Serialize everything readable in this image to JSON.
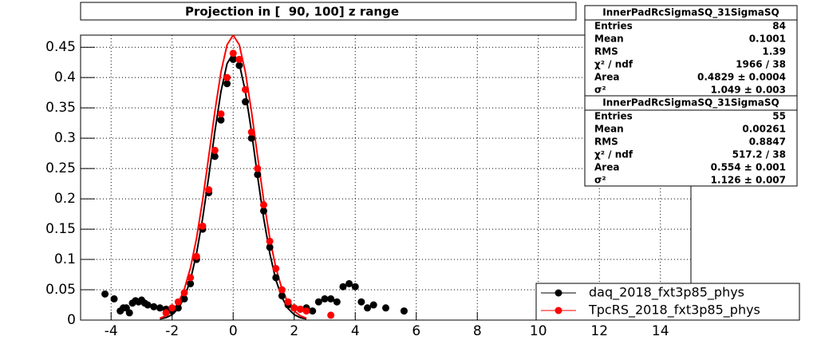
{
  "chart_data": {
    "type": "scatter",
    "title": "Projection in [  90, 100] z range",
    "xlim": [
      -5,
      15
    ],
    "ylim": [
      0,
      0.47
    ],
    "xticks": [
      -4,
      -2,
      0,
      2,
      4,
      6,
      8,
      10,
      12,
      14
    ],
    "yticks": [
      0,
      0.05,
      0.1,
      0.15,
      0.2,
      0.25,
      0.3,
      0.35,
      0.4,
      0.45
    ],
    "grid": true,
    "legend": "bottom-right",
    "series": [
      {
        "name": "daq_2018_fxt3p85_phys",
        "color": "#000000",
        "x": [
          -4.2,
          -3.9,
          -3.7,
          -3.6,
          -3.5,
          -3.4,
          -3.3,
          -3.2,
          -3.1,
          -3.0,
          -2.9,
          -2.8,
          -2.6,
          -2.4,
          -2.2,
          -2.0,
          -1.8,
          -1.6,
          -1.4,
          -1.2,
          -1.0,
          -0.8,
          -0.6,
          -0.4,
          -0.2,
          0,
          0.2,
          0.4,
          0.6,
          0.8,
          1.0,
          1.2,
          1.4,
          1.6,
          1.8,
          2.0,
          2.2,
          2.4,
          2.6,
          2.8,
          3.0,
          3.2,
          3.4,
          3.6,
          3.8,
          4.0,
          4.2,
          4.4,
          4.6,
          5.0,
          5.6
        ],
        "values": [
          0.043,
          0.035,
          0.015,
          0.02,
          0.02,
          0.012,
          0.028,
          0.032,
          0.03,
          0.033,
          0.028,
          0.025,
          0.022,
          0.02,
          0.018,
          0.015,
          0.02,
          0.035,
          0.06,
          0.1,
          0.15,
          0.21,
          0.27,
          0.33,
          0.39,
          0.43,
          0.42,
          0.36,
          0.3,
          0.24,
          0.18,
          0.12,
          0.07,
          0.04,
          0.025,
          0.02,
          0.018,
          0.02,
          0.015,
          0.03,
          0.035,
          0.035,
          0.03,
          0.055,
          0.06,
          0.055,
          0.03,
          0.02,
          0.025,
          0.02,
          0.015
        ]
      },
      {
        "name": "TpcRS_2018_fxt3p85_phys",
        "color": "#ff0000",
        "x": [
          -2.2,
          -2.0,
          -1.8,
          -1.6,
          -1.4,
          -1.2,
          -1.0,
          -0.8,
          -0.6,
          -0.4,
          -0.2,
          0,
          0.2,
          0.4,
          0.6,
          0.8,
          1.0,
          1.2,
          1.4,
          1.6,
          1.8,
          2.0,
          2.2,
          2.4,
          3.2
        ],
        "values": [
          0.012,
          0.02,
          0.03,
          0.045,
          0.07,
          0.105,
          0.155,
          0.215,
          0.28,
          0.34,
          0.4,
          0.44,
          0.43,
          0.38,
          0.31,
          0.25,
          0.19,
          0.13,
          0.085,
          0.05,
          0.03,
          0.02,
          0.018,
          0.015,
          0.008
        ]
      }
    ],
    "fit_curves": [
      {
        "color": "#000000",
        "x": [
          -2.4,
          -2.2,
          -2.0,
          -1.8,
          -1.6,
          -1.4,
          -1.2,
          -1.0,
          -0.8,
          -0.6,
          -0.4,
          -0.2,
          0,
          0.2,
          0.4,
          0.6,
          0.8,
          1.0,
          1.2,
          1.4,
          1.6,
          1.8,
          2.0,
          2.2,
          2.4
        ],
        "values": [
          0.002,
          0.004,
          0.009,
          0.019,
          0.037,
          0.066,
          0.11,
          0.168,
          0.237,
          0.311,
          0.377,
          0.423,
          0.44,
          0.423,
          0.377,
          0.311,
          0.237,
          0.168,
          0.11,
          0.066,
          0.037,
          0.019,
          0.009,
          0.004,
          0.002
        ]
      },
      {
        "color": "#ff0000",
        "x": [
          -2.4,
          -2.2,
          -2.0,
          -1.8,
          -1.6,
          -1.4,
          -1.2,
          -1.0,
          -0.8,
          -0.6,
          -0.4,
          -0.2,
          0,
          0.2,
          0.4,
          0.6,
          0.8,
          1.0,
          1.2,
          1.4,
          1.6,
          1.8,
          2.0,
          2.2,
          2.4
        ],
        "values": [
          0.003,
          0.007,
          0.015,
          0.028,
          0.051,
          0.086,
          0.135,
          0.198,
          0.27,
          0.344,
          0.409,
          0.454,
          0.47,
          0.454,
          0.409,
          0.344,
          0.27,
          0.198,
          0.135,
          0.086,
          0.051,
          0.028,
          0.015,
          0.007,
          0.003
        ]
      }
    ],
    "stats": [
      {
        "title": "InnerPadRcSigmaSQ_31SigmaSQ",
        "rows": [
          [
            "Entries",
            "84"
          ],
          [
            "Mean",
            "0.1001"
          ],
          [
            "RMS",
            "1.39"
          ],
          [
            "χ² / ndf",
            "1966 / 38"
          ],
          [
            "Area",
            "0.4829 ± 0.0004"
          ],
          [
            "σ²",
            "1.049 ± 0.003"
          ]
        ]
      },
      {
        "title": "InnerPadRcSigmaSQ_31SigmaSQ",
        "rows": [
          [
            "Entries",
            "55"
          ],
          [
            "Mean",
            "0.00261"
          ],
          [
            "RMS",
            "0.8847"
          ],
          [
            "χ² / ndf",
            "517.2 / 38"
          ],
          [
            "Area",
            "0.554 ± 0.001"
          ],
          [
            "σ²",
            "1.126 ± 0.007"
          ]
        ]
      }
    ]
  }
}
